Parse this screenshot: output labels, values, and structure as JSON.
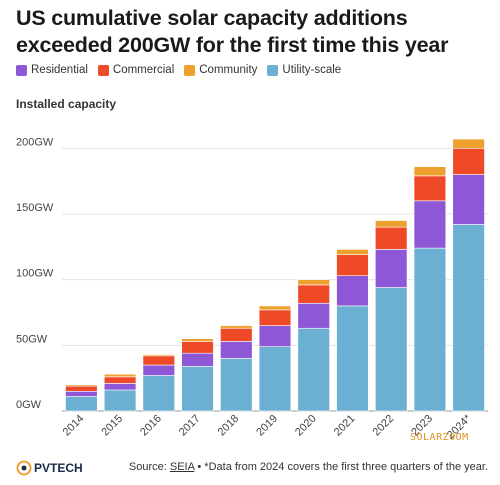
{
  "header": {
    "title": "US cumulative solar capacity additions exceeded 200GW for the first time this year"
  },
  "legend": [
    {
      "label": "Residential",
      "color": "#8e57d6"
    },
    {
      "label": "Commercial",
      "color": "#ef4a28"
    },
    {
      "label": "Community",
      "color": "#eea02e"
    },
    {
      "label": "Utility-scale",
      "color": "#6bafd3"
    }
  ],
  "chart_data": {
    "type": "bar",
    "stacked": true,
    "ylabel": "Installed capacity",
    "ylim": [
      0,
      220
    ],
    "yticks": [
      0,
      50,
      100,
      150,
      200
    ],
    "ytick_labels": [
      "0GW",
      "50GW",
      "100GW",
      "150GW",
      "200GW"
    ],
    "grid": true,
    "categories": [
      "2014",
      "2015",
      "2016",
      "2017",
      "2018",
      "2019",
      "2020",
      "2021",
      "2022",
      "2023",
      "2024*"
    ],
    "series": [
      {
        "name": "Utility-scale",
        "color": "#6bafd3",
        "values": [
          11,
          16,
          27,
          34,
          40,
          49,
          63,
          80,
          94,
          124,
          142
        ]
      },
      {
        "name": "Residential",
        "color": "#8e57d6",
        "values": [
          4,
          5,
          8,
          10,
          13,
          16,
          19,
          23,
          29,
          36,
          38
        ]
      },
      {
        "name": "Commercial",
        "color": "#ef4a28",
        "values": [
          4,
          5,
          7,
          9,
          10,
          12,
          14,
          16,
          17,
          19,
          20
        ]
      },
      {
        "name": "Community",
        "color": "#eea02e",
        "values": [
          1,
          2,
          1,
          2,
          2,
          3,
          4,
          4,
          5,
          7,
          7
        ]
      }
    ]
  },
  "footer": {
    "logo_text": "PVTECH",
    "source_prefix": "Source: ",
    "source_link": "SEIA",
    "source_note": " • *Data from 2024 covers the first three quarters of the year."
  },
  "watermark": "SOLARZOOM"
}
